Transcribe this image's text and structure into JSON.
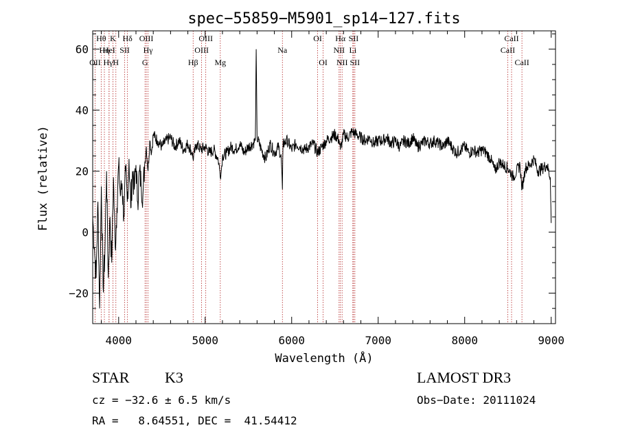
{
  "chart_data": {
    "type": "line",
    "title": "spec−55859−M5901_sp14−127.fits",
    "xlabel": "Wavelength (Å)",
    "ylabel": "Flux (relative)",
    "xlim": [
      3700,
      9050
    ],
    "ylim": [
      -30,
      66
    ],
    "xticks": [
      4000,
      5000,
      6000,
      7000,
      8000,
      9000
    ],
    "yticks": [
      -20,
      0,
      20,
      40,
      60
    ],
    "tick_labels_x": [
      "4000",
      "5000",
      "6000",
      "7000",
      "8000",
      "9000"
    ],
    "tick_labels_y": [
      "−20",
      "0",
      "20",
      "40",
      "60"
    ],
    "series": [
      {
        "name": "flux",
        "x": [
          3700,
          3720,
          3740,
          3760,
          3780,
          3800,
          3820,
          3840,
          3860,
          3880,
          3900,
          3920,
          3940,
          3960,
          3980,
          4000,
          4020,
          4040,
          4060,
          4080,
          4100,
          4120,
          4140,
          4160,
          4180,
          4200,
          4220,
          4240,
          4260,
          4280,
          4300,
          4320,
          4340,
          4360,
          4380,
          4400,
          4450,
          4500,
          4550,
          4600,
          4650,
          4700,
          4750,
          4800,
          4850,
          4860,
          4900,
          4950,
          5000,
          5050,
          5100,
          5150,
          5170,
          5183,
          5200,
          5250,
          5300,
          5350,
          5400,
          5450,
          5500,
          5550,
          5580,
          5590,
          5600,
          5650,
          5700,
          5750,
          5800,
          5850,
          5880,
          5893,
          5900,
          5950,
          6000,
          6050,
          6100,
          6150,
          6200,
          6250,
          6300,
          6350,
          6400,
          6450,
          6500,
          6550,
          6563,
          6600,
          6650,
          6700,
          6750,
          6800,
          6850,
          6900,
          6950,
          7000,
          7050,
          7100,
          7150,
          7200,
          7250,
          7300,
          7350,
          7400,
          7450,
          7500,
          7550,
          7600,
          7650,
          7700,
          7750,
          7800,
          7850,
          7900,
          7950,
          8000,
          8050,
          8100,
          8150,
          8200,
          8250,
          8300,
          8350,
          8400,
          8450,
          8500,
          8542,
          8560,
          8600,
          8640,
          8662,
          8700,
          8750,
          8800,
          8850,
          8900,
          8950,
          8990,
          9000
        ],
        "y": [
          5,
          -5,
          -15,
          10,
          -25,
          15,
          -18,
          -8,
          20,
          -15,
          5,
          -10,
          18,
          -5,
          8,
          22,
          12,
          16,
          5,
          20,
          10,
          24,
          8,
          20,
          14,
          22,
          10,
          20,
          16,
          12,
          22,
          28,
          20,
          30,
          26,
          32,
          30,
          28,
          30,
          31,
          28,
          30,
          27,
          29,
          26,
          24,
          29,
          27,
          28,
          26,
          27,
          24,
          20,
          19,
          25,
          26,
          28,
          27,
          29,
          26,
          28,
          29,
          30,
          60,
          31,
          27,
          24,
          29,
          26,
          28,
          24,
          14,
          29,
          30,
          27,
          29,
          28,
          27,
          28,
          29,
          26,
          28,
          30,
          31,
          32,
          30,
          27,
          32,
          31,
          33,
          32,
          31,
          30,
          31,
          29,
          30,
          30,
          31,
          29,
          30,
          28,
          30,
          29,
          31,
          28,
          29,
          30,
          29,
          30,
          29,
          28,
          30,
          28,
          26,
          27,
          28,
          26,
          27,
          26,
          27,
          26,
          24,
          20,
          23,
          22,
          21,
          19,
          18,
          20,
          22,
          14,
          21,
          22,
          24,
          20,
          21,
          22,
          18,
          3
        ],
        "color": "#000000"
      }
    ],
    "lines": [
      {
        "name": "Hθ",
        "x": 3798,
        "row": 0
      },
      {
        "name": "OII",
        "x": 3727,
        "row": 2
      },
      {
        "name": "Hη",
        "x": 3835,
        "row": 1
      },
      {
        "name": "K",
        "x": 3934,
        "row": 0
      },
      {
        "name": "H",
        "x": 3968,
        "row": 2
      },
      {
        "name": "HeI",
        "x": 3889,
        "row": 1
      },
      {
        "name": "Hγ′",
        "x": 3889,
        "row": 2
      },
      {
        "name": "SII",
        "x": 4070,
        "row": 1
      },
      {
        "name": "Hδ",
        "x": 4102,
        "row": 0
      },
      {
        "name": "OIII",
        "x": 4320,
        "row": 0
      },
      {
        "name": "Hγ",
        "x": 4340,
        "row": 1
      },
      {
        "name": "G",
        "x": 4305,
        "row": 2
      },
      {
        "name": "Hβ",
        "x": 4861,
        "row": 2
      },
      {
        "name": "OIII",
        "x": 4959,
        "row": 1
      },
      {
        "name": "OIII",
        "x": 5007,
        "row": 0
      },
      {
        "name": "Mg",
        "x": 5175,
        "row": 2
      },
      {
        "name": "Na",
        "x": 5893,
        "row": 1
      },
      {
        "name": "OI",
        "x": 6300,
        "row": 0
      },
      {
        "name": "OI",
        "x": 6364,
        "row": 2
      },
      {
        "name": "Hα",
        "x": 6563,
        "row": 0
      },
      {
        "name": "NII",
        "x": 6548,
        "row": 1
      },
      {
        "name": "NII",
        "x": 6583,
        "row": 2
      },
      {
        "name": "SII",
        "x": 6716,
        "row": 0
      },
      {
        "name": "Li",
        "x": 6707,
        "row": 1
      },
      {
        "name": "SII",
        "x": 6731,
        "row": 2
      },
      {
        "name": "CaII",
        "x": 8542,
        "row": 0
      },
      {
        "name": "CaII",
        "x": 8498,
        "row": 1
      },
      {
        "name": "CaII",
        "x": 8662,
        "row": 2
      }
    ]
  },
  "info": {
    "class": "STAR",
    "subclass": "K3",
    "survey": "LAMOST DR3",
    "cz": "cz = −32.6 ± 6.5 km/s",
    "obs_date": "Obs−Date: 20111024",
    "radec": "RA =   8.64551, DEC =  41.54412"
  }
}
